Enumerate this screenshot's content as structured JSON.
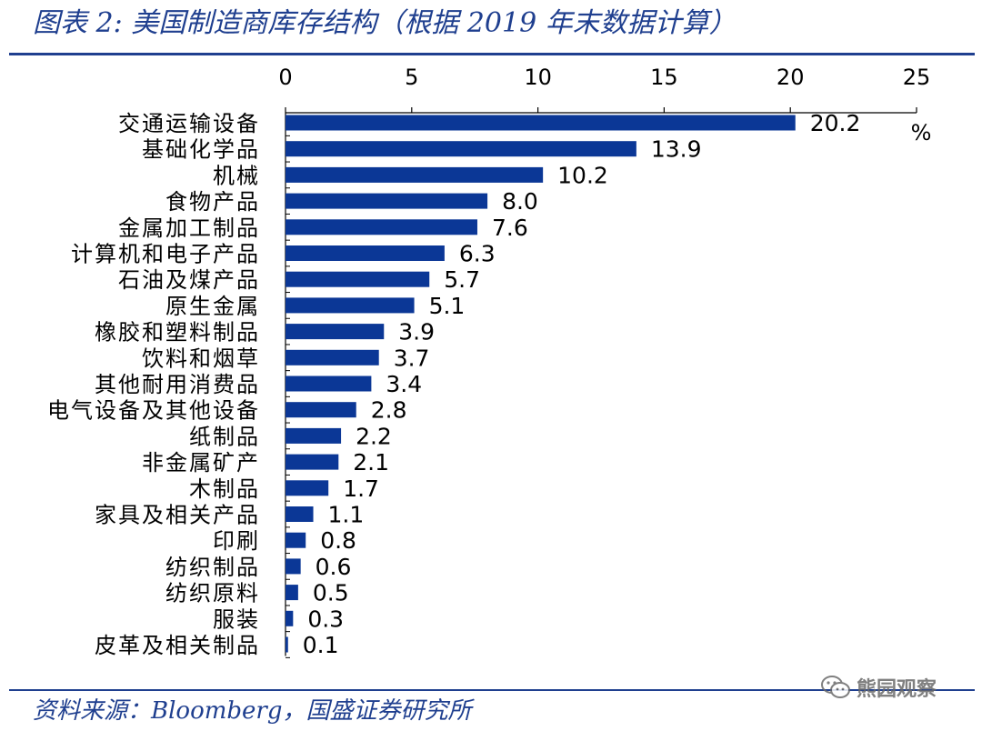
{
  "header": {
    "title": "图表 2:  美国制造商库存结构（根据 2019 年末数据计算）"
  },
  "footer": {
    "source": "资料来源：Bloomberg，国盛证券研究所",
    "watermark": "熊园观察"
  },
  "colors": {
    "bar": "#0b3796",
    "title": "#1f3f8f",
    "rule": "#1f3f8f"
  },
  "chart_data": {
    "type": "bar",
    "orientation": "horizontal",
    "unit_label": "%",
    "xlim": [
      0,
      25
    ],
    "xticks": [
      "0",
      "5",
      "10",
      "15",
      "20",
      "25"
    ],
    "grid": false,
    "categories": [
      "交通运输设备",
      "基础化学品",
      "机械",
      "食物产品",
      "金属加工制品",
      "计算机和电子产品",
      "石油及煤产品",
      "原生金属",
      "橡胶和塑料制品",
      "饮料和烟草",
      "其他耐用消费品",
      "电气设备及其他设备",
      "纸制品",
      "非金属矿产",
      "木制品",
      "家具及相关产品",
      "印刷",
      "纺织制品",
      "纺织原料",
      "服装",
      "皮革及相关制品"
    ],
    "values": [
      20.2,
      13.9,
      10.2,
      8.0,
      7.6,
      6.3,
      5.7,
      5.1,
      3.9,
      3.7,
      3.4,
      2.8,
      2.2,
      2.1,
      1.7,
      1.1,
      0.8,
      0.6,
      0.5,
      0.3,
      0.1
    ],
    "value_labels": [
      "20.2",
      "13.9",
      "10.2",
      "8.0",
      "7.6",
      "6.3",
      "5.7",
      "5.1",
      "3.9",
      "3.7",
      "3.4",
      "2.8",
      "2.2",
      "2.1",
      "1.7",
      "1.1",
      "0.8",
      "0.6",
      "0.5",
      "0.3",
      "0.1"
    ]
  }
}
